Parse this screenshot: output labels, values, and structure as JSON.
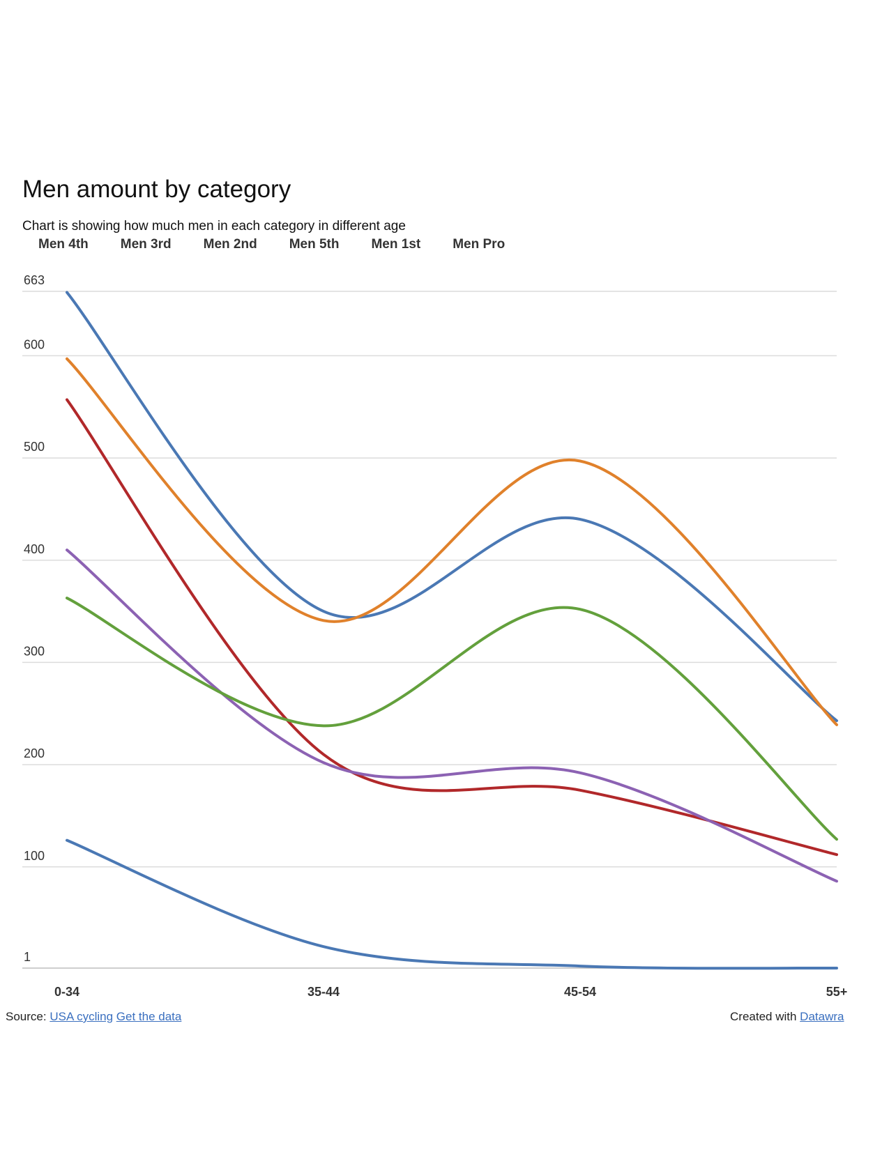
{
  "chart_data": {
    "type": "line",
    "title": "Men amount by category",
    "subtitle": "Chart is showing how much men in each category in different age",
    "categories": [
      "0-34",
      "35-44",
      "45-54",
      "55+"
    ],
    "yticks": [
      1,
      100,
      200,
      300,
      400,
      500,
      600,
      663
    ],
    "ylim": [
      1,
      663
    ],
    "grid": true,
    "legend_position": "top",
    "series": [
      {
        "name": "Men 4th",
        "values": [
          662,
          350,
          440,
          243
        ],
        "color": "#4a78b4"
      },
      {
        "name": "Men 3rd",
        "values": [
          597,
          341,
          497,
          239
        ],
        "color": "#e0812b"
      },
      {
        "name": "Men 2nd",
        "values": [
          557,
          210,
          175,
          112
        ],
        "color": "#b1282a"
      },
      {
        "name": "Men 5th",
        "values": [
          410,
          202,
          192,
          86
        ],
        "color": "#8c62b3"
      },
      {
        "name": "Men 1st",
        "values": [
          363,
          238,
          352,
          127
        ],
        "color": "#63a03c"
      },
      {
        "name": "Men Pro",
        "values": [
          126,
          22,
          3,
          1
        ],
        "color": "#4a78b4"
      }
    ]
  },
  "footer": {
    "source_label": "Source:",
    "source_link": "USA cycling",
    "data_link": "Get the data",
    "created_label": "Created with",
    "created_link": "Datawra"
  }
}
